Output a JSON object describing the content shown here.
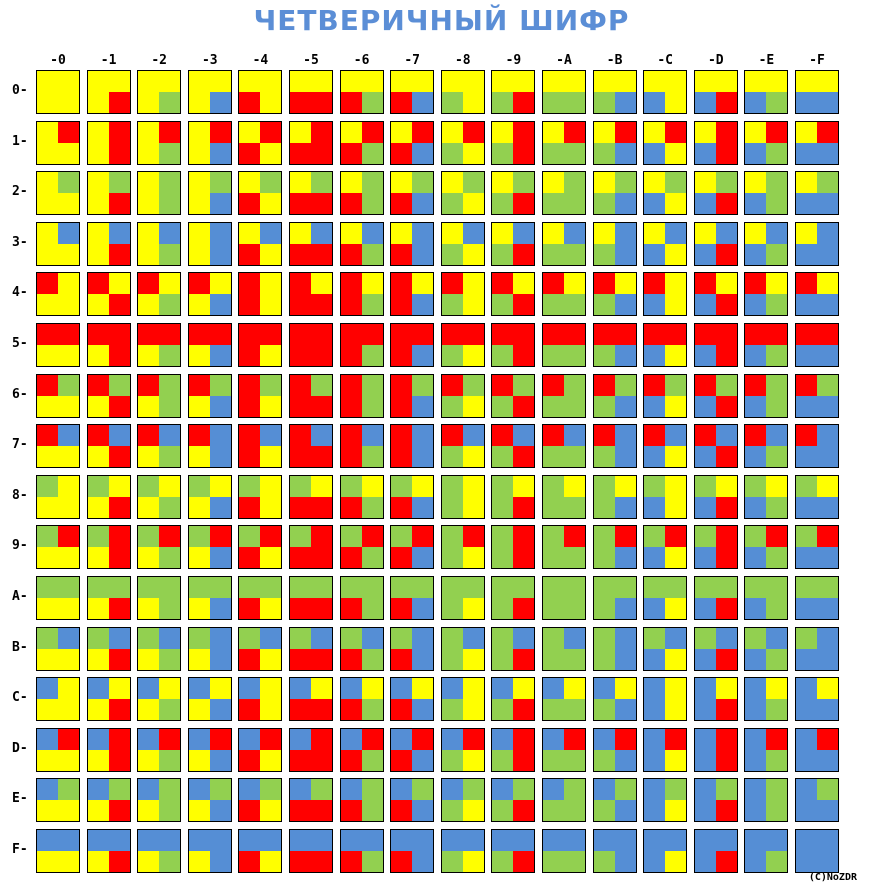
{
  "title": "ЧЕТВЕРИЧНЫЙ ШИФР",
  "credit": "(C)NoZDR",
  "col_labels": [
    "-0",
    "-1",
    "-2",
    "-3",
    "-4",
    "-5",
    "-6",
    "-7",
    "-8",
    "-9",
    "-A",
    "-B",
    "-C",
    "-D",
    "-E",
    "-F"
  ],
  "row_labels": [
    "0-",
    "1-",
    "2-",
    "3-",
    "4-",
    "5-",
    "6-",
    "7-",
    "8-",
    "9-",
    "A-",
    "B-",
    "C-",
    "D-",
    "E-",
    "F-"
  ],
  "digit_colors": {
    "0": "#ffff00",
    "1": "#ff0000",
    "2": "#92d050",
    "3": "#558ed5"
  },
  "cell_rule": "quadrants TL,TR from row hex digit (base-4 digits), BL,BR from column hex digit"
}
